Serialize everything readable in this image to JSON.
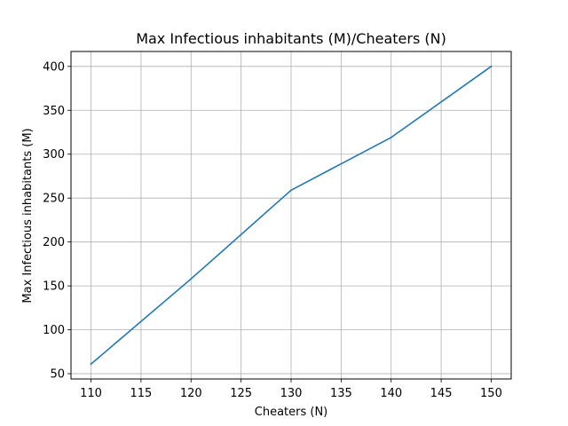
{
  "chart_data": {
    "type": "line",
    "title": "Max Infectious inhabitants (M)/Cheaters (N)",
    "xlabel": "Cheaters (N)",
    "ylabel": "Max Infectious inhabitants (M)",
    "x": [
      110,
      120,
      130,
      140,
      150
    ],
    "series": [
      {
        "values": [
          61,
          158,
          259,
          319,
          400
        ]
      }
    ],
    "xlim": [
      108,
      152
    ],
    "ylim": [
      44,
      417
    ],
    "xticks": [
      110,
      115,
      120,
      125,
      130,
      135,
      140,
      145,
      150
    ],
    "yticks": [
      50,
      100,
      150,
      200,
      250,
      300,
      350,
      400
    ],
    "grid": true,
    "colors": {
      "line": "#1f77b4",
      "grid": "#b0b0b0",
      "axis": "#000000"
    }
  }
}
